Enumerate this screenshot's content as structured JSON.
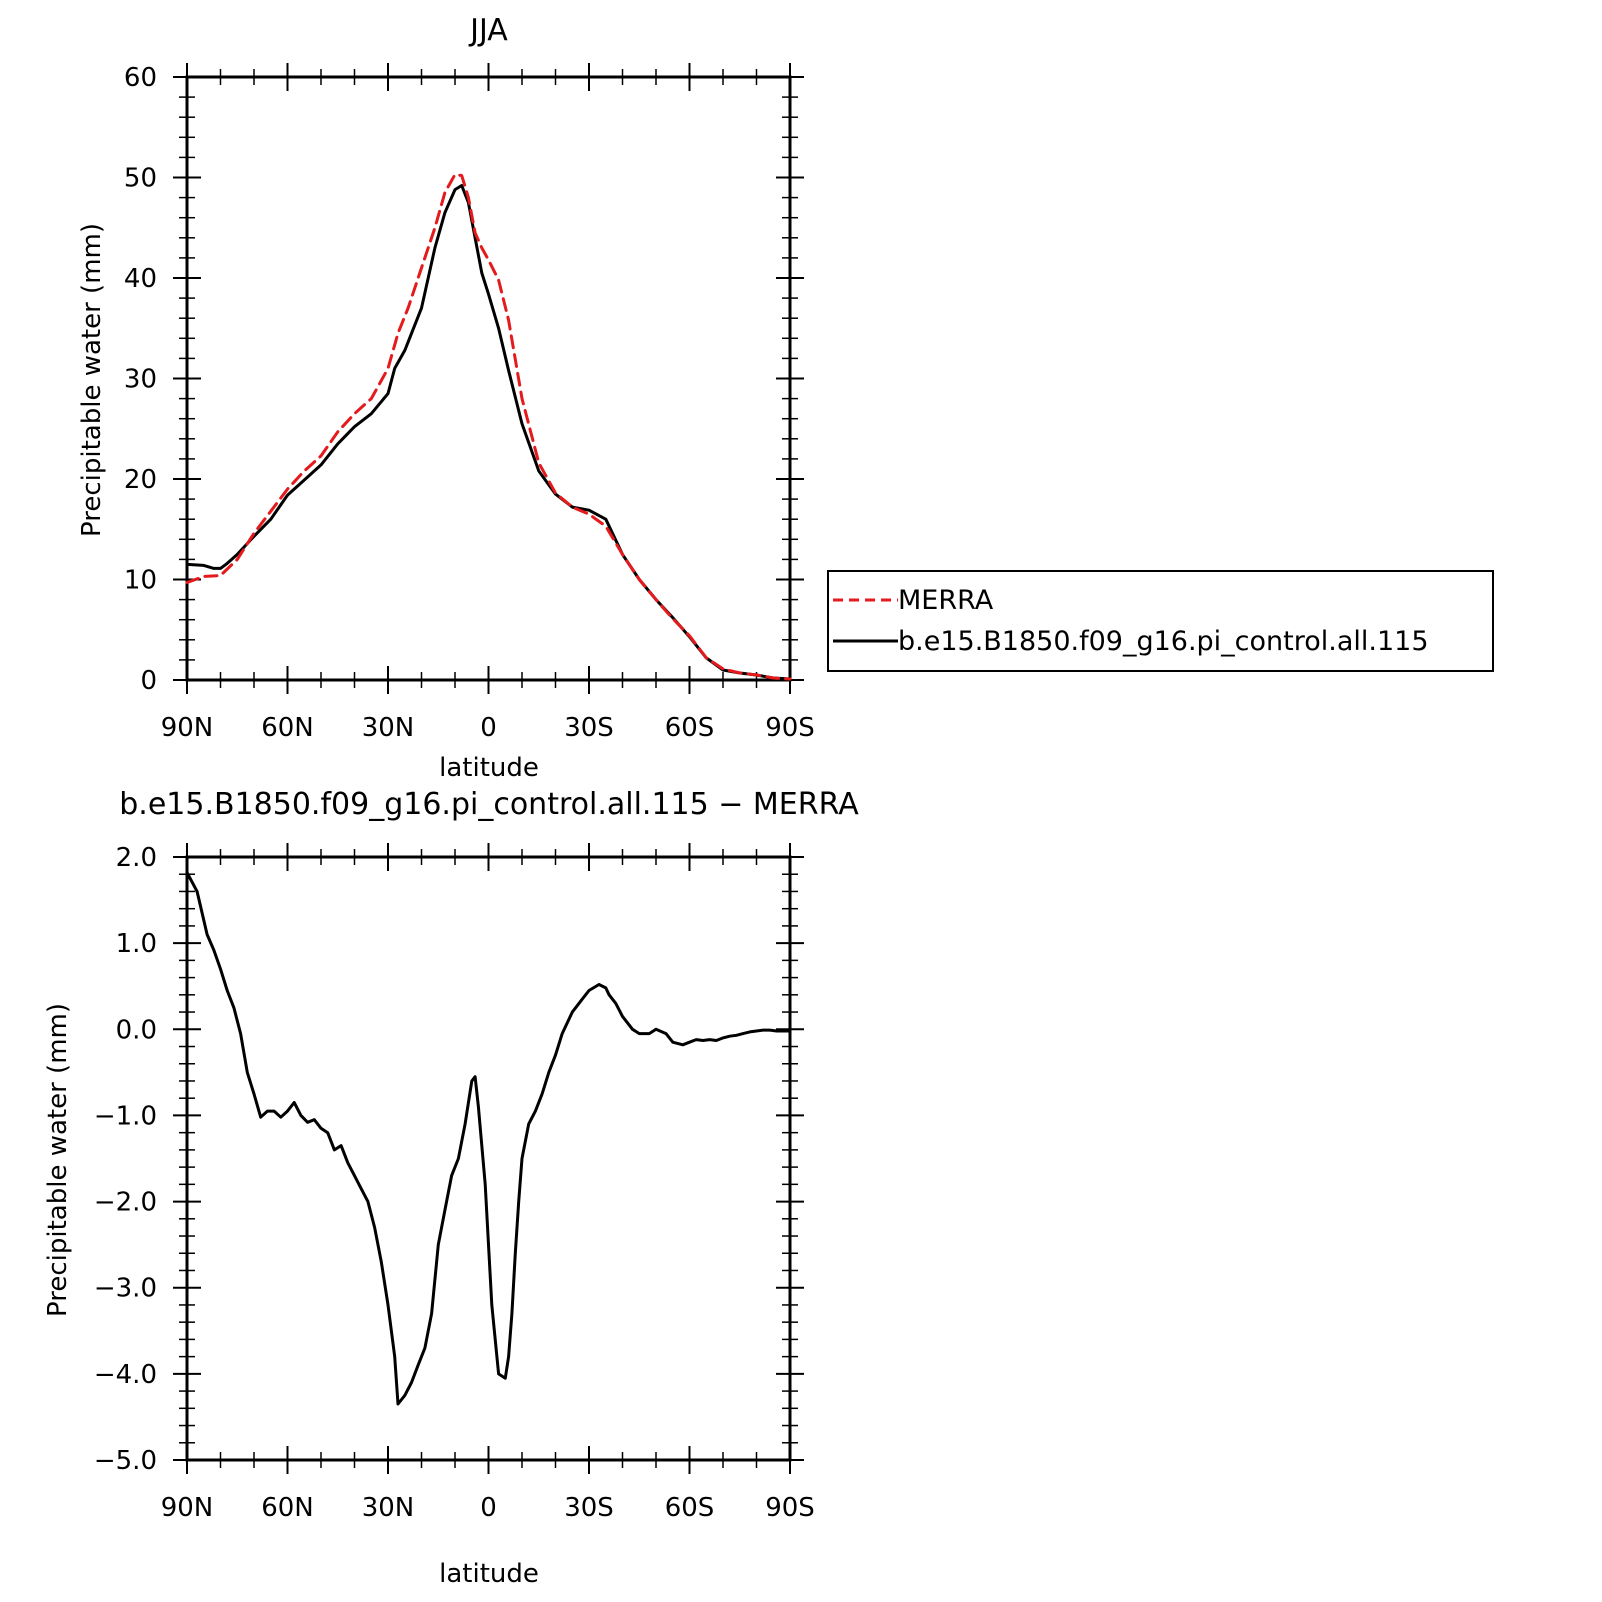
{
  "chart_data": [
    {
      "type": "line",
      "title": "JJA",
      "xlabel": "latitude",
      "ylabel": "Precipitable water (mm)",
      "xlim": [
        -90,
        90
      ],
      "ylim": [
        0,
        60
      ],
      "x_orientation": "90N on left, 90S on right",
      "x_ticks": [
        -90,
        -60,
        -30,
        0,
        30,
        60,
        90
      ],
      "x_tick_labels": [
        "90N",
        "60N",
        "30N",
        "0",
        "30S",
        "60S",
        "90S"
      ],
      "y_ticks": [
        0,
        10,
        20,
        30,
        40,
        50,
        60
      ],
      "y_tick_labels": [
        "0",
        "10",
        "20",
        "30",
        "40",
        "50",
        "60"
      ],
      "legend": {
        "placement": "right of plot",
        "entries": [
          "MERRA",
          "b.e15.B1850.f09_g16.pi_control.all.115"
        ]
      },
      "series": [
        {
          "name": "MERRA",
          "color": "#e41a1c",
          "style": "dashed",
          "x": [
            -90,
            -85,
            -80,
            -75,
            -70,
            -65,
            -60,
            -55,
            -50,
            -45,
            -40,
            -35,
            -30,
            -27,
            -24,
            -20,
            -16,
            -13,
            -10,
            -8,
            -6,
            -4,
            -2,
            0,
            3,
            6,
            10,
            15,
            20,
            25,
            30,
            35,
            40,
            45,
            50,
            55,
            60,
            65,
            70,
            75,
            80,
            85,
            90
          ],
          "y": [
            9.7,
            10.3,
            10.4,
            12.0,
            14.6,
            16.8,
            19.0,
            20.8,
            22.3,
            24.7,
            26.5,
            28.0,
            31.0,
            34.5,
            37.0,
            41.0,
            45.0,
            48.5,
            50.3,
            50.2,
            48.0,
            44.5,
            43.0,
            41.8,
            39.8,
            35.8,
            28.0,
            21.6,
            18.6,
            17.2,
            16.5,
            15.3,
            12.5,
            10.0,
            8.0,
            6.1,
            4.4,
            2.2,
            1.1,
            0.7,
            0.5,
            0.2,
            0.1
          ]
        },
        {
          "name": "b.e15.B1850.f09_g16.pi_control.all.115",
          "color": "#000000",
          "style": "solid",
          "x": [
            -90,
            -85,
            -82,
            -80,
            -78,
            -75,
            -70,
            -65,
            -60,
            -55,
            -50,
            -45,
            -40,
            -35,
            -30,
            -28,
            -25,
            -20,
            -16,
            -13,
            -10,
            -8,
            -6,
            -4,
            -2,
            0,
            3,
            6,
            10,
            15,
            20,
            25,
            30,
            35,
            40,
            45,
            50,
            55,
            60,
            65,
            70,
            75,
            80,
            85,
            90
          ],
          "y": [
            11.5,
            11.4,
            11.1,
            11.1,
            11.6,
            12.5,
            14.3,
            16.0,
            18.4,
            19.9,
            21.4,
            23.5,
            25.2,
            26.5,
            28.5,
            31.0,
            32.8,
            37.0,
            43.0,
            46.5,
            48.8,
            49.2,
            47.5,
            44.0,
            40.5,
            38.4,
            35.0,
            30.8,
            25.5,
            20.8,
            18.5,
            17.2,
            16.9,
            16.0,
            12.5,
            10.0,
            8.0,
            6.2,
            4.3,
            2.2,
            1.0,
            0.7,
            0.5,
            0.2,
            0.1
          ]
        }
      ]
    },
    {
      "type": "line",
      "title": "b.e15.B1850.f09_g16.pi_control.all.115 − MERRA",
      "xlabel": "latitude",
      "ylabel": "Precipitable water (mm)",
      "xlim": [
        -90,
        90
      ],
      "ylim": [
        -5,
        2
      ],
      "x_orientation": "90N on left, 90S on right",
      "x_ticks": [
        -90,
        -60,
        -30,
        0,
        30,
        60,
        90
      ],
      "x_tick_labels": [
        "90N",
        "60N",
        "30N",
        "0",
        "30S",
        "60S",
        "90S"
      ],
      "y_ticks": [
        -5,
        -4,
        -3,
        -2,
        -1,
        0,
        1,
        2
      ],
      "y_tick_labels": [
        "−5.0",
        "−4.0",
        "−3.0",
        "−2.0",
        "−1.0",
        "0.0",
        "1.0",
        "2.0"
      ],
      "series": [
        {
          "color": "#000000",
          "style": "solid",
          "x": [
            -90,
            -87,
            -84,
            -82,
            -80,
            -78,
            -76,
            -74,
            -72,
            -70,
            -68,
            -66,
            -64,
            -62,
            -60,
            -58,
            -56,
            -54,
            -52,
            -50,
            -48,
            -46,
            -44,
            -42,
            -40,
            -38,
            -36,
            -34,
            -32,
            -30,
            -28,
            -27,
            -25,
            -23,
            -21,
            -19,
            -17,
            -15,
            -13,
            -11,
            -9,
            -7,
            -5,
            -4,
            -3,
            -1,
            1,
            3,
            5,
            6,
            7,
            8,
            9,
            10,
            12,
            14,
            16,
            18,
            20,
            22,
            25,
            28,
            30,
            33,
            35,
            36,
            38,
            40,
            43,
            45,
            48,
            50,
            53,
            55,
            58,
            60,
            62,
            64,
            66,
            68,
            70,
            72,
            74,
            76,
            78,
            80,
            82,
            84,
            86,
            88,
            90
          ],
          "y": [
            1.82,
            1.6,
            1.1,
            0.92,
            0.7,
            0.45,
            0.25,
            -0.05,
            -0.5,
            -0.75,
            -1.02,
            -0.95,
            -0.95,
            -1.02,
            -0.95,
            -0.85,
            -1.0,
            -1.08,
            -1.05,
            -1.15,
            -1.2,
            -1.4,
            -1.35,
            -1.55,
            -1.7,
            -1.85,
            -2.0,
            -2.3,
            -2.7,
            -3.2,
            -3.8,
            -4.35,
            -4.25,
            -4.1,
            -3.9,
            -3.7,
            -3.3,
            -2.5,
            -2.1,
            -1.7,
            -1.5,
            -1.1,
            -0.6,
            -0.55,
            -0.9,
            -1.8,
            -3.2,
            -4.0,
            -4.05,
            -3.8,
            -3.3,
            -2.6,
            -2.0,
            -1.5,
            -1.1,
            -0.95,
            -0.75,
            -0.5,
            -0.3,
            -0.05,
            0.2,
            0.35,
            0.45,
            0.52,
            0.48,
            0.4,
            0.3,
            0.15,
            0.0,
            -0.05,
            -0.05,
            0.0,
            -0.05,
            -0.15,
            -0.18,
            -0.15,
            -0.12,
            -0.13,
            -0.12,
            -0.13,
            -0.1,
            -0.08,
            -0.07,
            -0.05,
            -0.03,
            -0.02,
            -0.01,
            -0.01,
            -0.02,
            -0.02,
            -0.02
          ]
        }
      ]
    }
  ]
}
